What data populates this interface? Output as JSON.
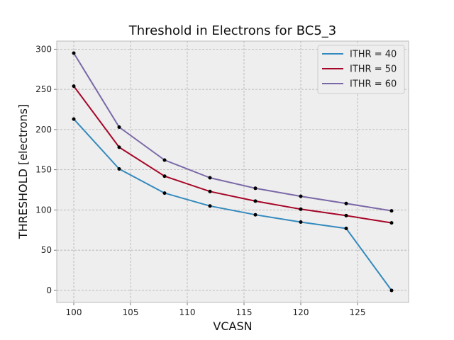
{
  "chart_data": {
    "type": "line",
    "title": "Threshold in Electrons for BC5_3",
    "xlabel": "VCASN",
    "ylabel": "THRESHOLD [electrons]",
    "xlim": [
      98.5,
      129.5
    ],
    "ylim": [
      -15,
      310
    ],
    "xticks": [
      100,
      105,
      110,
      115,
      120,
      125
    ],
    "yticks": [
      0,
      50,
      100,
      150,
      200,
      250,
      300
    ],
    "grid": true,
    "legend_position": "top-right",
    "x": [
      100,
      104,
      108,
      112,
      116,
      120,
      124,
      128
    ],
    "series": [
      {
        "name": "ITHR = 40",
        "color": "#348abd",
        "values": [
          213,
          151,
          121,
          105,
          94,
          85,
          77,
          0
        ]
      },
      {
        "name": "ITHR = 50",
        "color": "#a60628",
        "values": [
          254,
          178,
          142,
          123,
          111,
          101,
          93,
          84
        ]
      },
      {
        "name": "ITHR = 60",
        "color": "#7a68a6",
        "values": [
          295,
          203,
          162,
          140,
          127,
          117,
          108,
          99
        ]
      }
    ]
  },
  "style": {
    "plot_background": "#eeeeee",
    "grid_color": "#b0b0b0",
    "marker_color": "#000000"
  }
}
